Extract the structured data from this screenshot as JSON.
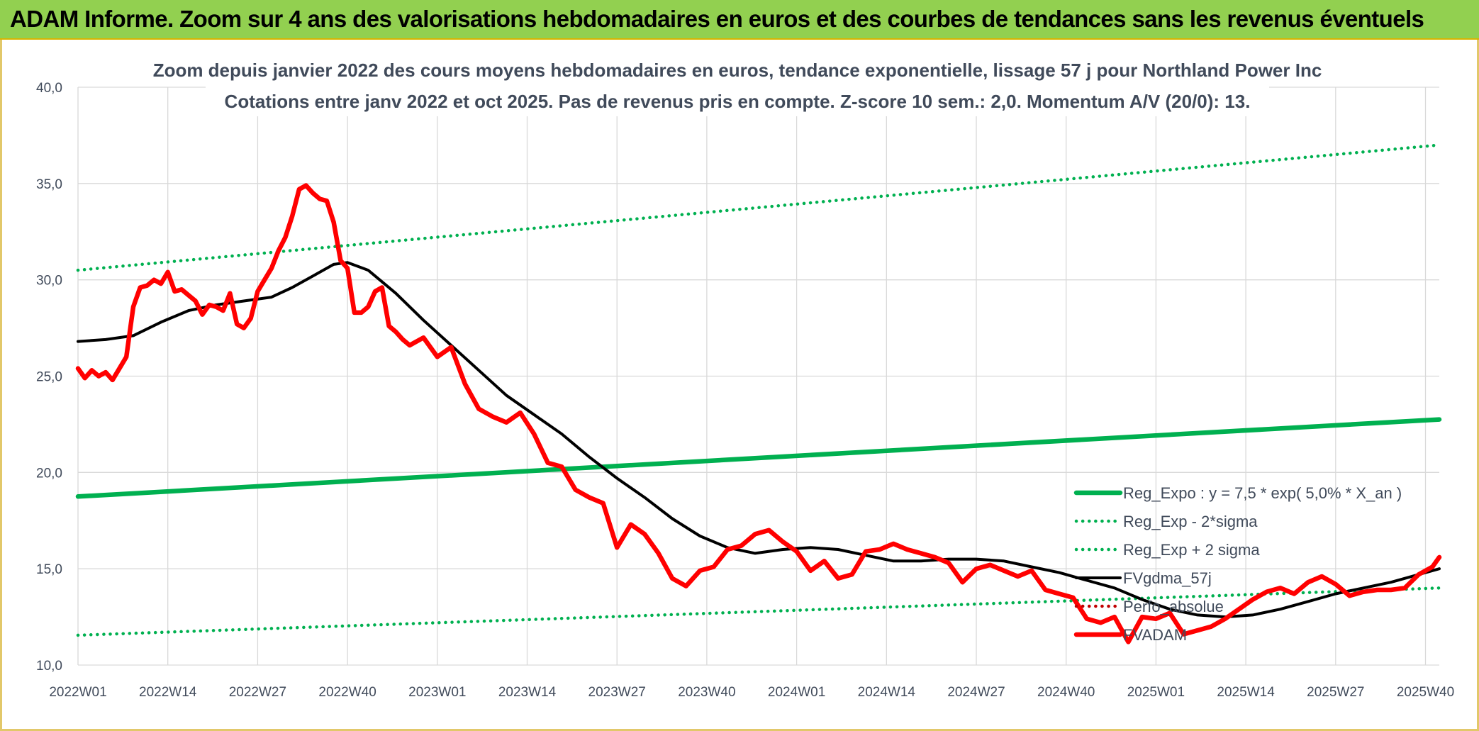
{
  "header": {
    "banner_title": "ADAM Informe. Zoom sur 4 ans des valorisations hebdomadaires en euros et des courbes de tendances sans les revenus éventuels"
  },
  "chart_data": {
    "type": "line",
    "title": "Zoom depuis janvier 2022 des cours moyens hebdomadaires en euros, tendance exponentielle, lissage 57 j pour Northland Power Inc",
    "subtitle": "Cotations entre janv 2022 et oct 2025. Pas de revenus pris en compte. Z-score 10 sem.: 2,0. Momentum A/V (20/0): 13.",
    "xlabel": "",
    "ylabel": "",
    "ylim": [
      10,
      40
    ],
    "y_ticks": [
      "10,0",
      "15,0",
      "20,0",
      "25,0",
      "30,0",
      "35,0",
      "40,0"
    ],
    "y_tick_values": [
      10,
      15,
      20,
      25,
      30,
      35,
      40
    ],
    "x_range": [
      0,
      197
    ],
    "x_ticks": [
      "2022W01",
      "2022W14",
      "2022W27",
      "2022W40",
      "2023W01",
      "2023W14",
      "2023W27",
      "2023W40",
      "2024W01",
      "2024W14",
      "2024W27",
      "2024W40",
      "2025W01",
      "2025W14",
      "2025W27",
      "2025W40"
    ],
    "x_tick_values": [
      0,
      13,
      26,
      39,
      52,
      65,
      78,
      91,
      104,
      117,
      130,
      143,
      156,
      169,
      182,
      195
    ],
    "grid": true,
    "legend_position": "bottom-right, inside plot",
    "colors": {
      "trend": "#00b050",
      "sigma": "#00b050",
      "smooth": "#000000",
      "perf": "#c00000",
      "price": "#ff0000",
      "grid": "#d9d9d9"
    },
    "series": [
      {
        "name": "Reg_Expo : y = 7,5 * exp( 5,0% *  X_an )",
        "style": "solid-thick",
        "color": "#00b050",
        "x": [
          0,
          197
        ],
        "values": [
          18.75,
          22.75
        ]
      },
      {
        "name": "Reg_Exp - 2*sigma",
        "style": "dotted",
        "color": "#00b050",
        "x": [
          0,
          197
        ],
        "values": [
          11.55,
          14.0
        ]
      },
      {
        "name": "Reg_Exp + 2 sigma",
        "style": "dotted",
        "color": "#00b050",
        "x": [
          0,
          197
        ],
        "values": [
          30.5,
          37.0
        ]
      },
      {
        "name": "FVgdma_57j",
        "style": "solid",
        "color": "#000000",
        "x": [
          0,
          4,
          8,
          12,
          16,
          20,
          24,
          28,
          31,
          34,
          37,
          39,
          42,
          46,
          50,
          54,
          58,
          62,
          66,
          70,
          74,
          78,
          82,
          86,
          90,
          94,
          98,
          102,
          106,
          110,
          114,
          118,
          122,
          126,
          130,
          134,
          138,
          142,
          146,
          150,
          154,
          158,
          162,
          166,
          170,
          174,
          178,
          182,
          186,
          190,
          194,
          197
        ],
        "values": [
          26.8,
          26.9,
          27.1,
          27.8,
          28.4,
          28.7,
          28.9,
          29.1,
          29.6,
          30.2,
          30.8,
          30.9,
          30.5,
          29.3,
          27.9,
          26.6,
          25.3,
          24.0,
          23.0,
          22.0,
          20.8,
          19.7,
          18.7,
          17.6,
          16.7,
          16.1,
          15.8,
          16.0,
          16.1,
          16.0,
          15.7,
          15.4,
          15.4,
          15.5,
          15.5,
          15.4,
          15.1,
          14.8,
          14.4,
          14.0,
          13.4,
          12.9,
          12.6,
          12.5,
          12.6,
          12.9,
          13.3,
          13.7,
          14.0,
          14.3,
          14.7,
          15.0
        ]
      },
      {
        "name": "Perfo_absolue",
        "style": "dotted",
        "color": "#c00000",
        "x": [],
        "values": []
      },
      {
        "name": "FVADAM",
        "style": "solid-thick",
        "color": "#ff0000",
        "x": [
          0,
          1,
          2,
          3,
          4,
          5,
          6,
          7,
          8,
          9,
          10,
          11,
          12,
          13,
          14,
          15,
          16,
          17,
          18,
          19,
          20,
          21,
          22,
          23,
          24,
          25,
          26,
          27,
          28,
          29,
          30,
          31,
          32,
          33,
          34,
          35,
          36,
          37,
          38,
          39,
          40,
          41,
          42,
          43,
          44,
          45,
          46,
          47,
          48,
          50,
          52,
          54,
          56,
          58,
          60,
          62,
          64,
          66,
          68,
          70,
          72,
          74,
          76,
          78,
          80,
          82,
          84,
          86,
          88,
          90,
          92,
          94,
          96,
          98,
          100,
          102,
          104,
          106,
          108,
          110,
          112,
          114,
          116,
          118,
          120,
          122,
          124,
          126,
          128,
          130,
          132,
          134,
          136,
          138,
          140,
          142,
          144,
          146,
          148,
          150,
          152,
          154,
          156,
          158,
          160,
          162,
          164,
          166,
          168,
          170,
          172,
          174,
          176,
          178,
          180,
          182,
          184,
          186,
          188,
          190,
          192,
          194,
          196,
          197
        ],
        "values": [
          25.4,
          24.9,
          25.3,
          25.0,
          25.2,
          24.8,
          25.4,
          26.0,
          28.6,
          29.6,
          29.7,
          30.0,
          29.8,
          30.4,
          29.4,
          29.5,
          29.2,
          28.9,
          28.2,
          28.7,
          28.6,
          28.4,
          29.3,
          27.7,
          27.5,
          28.0,
          29.4,
          30.0,
          30.6,
          31.5,
          32.2,
          33.3,
          34.7,
          34.9,
          34.5,
          34.2,
          34.1,
          33.0,
          31.0,
          30.6,
          28.3,
          28.3,
          28.6,
          29.4,
          29.6,
          27.6,
          27.3,
          26.9,
          26.6,
          27.0,
          26.0,
          26.5,
          24.6,
          23.3,
          22.9,
          22.6,
          23.1,
          22.0,
          20.5,
          20.3,
          19.1,
          18.7,
          18.4,
          16.1,
          17.3,
          16.8,
          15.8,
          14.5,
          14.1,
          14.9,
          15.1,
          16.0,
          16.2,
          16.8,
          17.0,
          16.4,
          15.9,
          14.9,
          15.4,
          14.5,
          14.7,
          15.9,
          16.0,
          16.3,
          16.0,
          15.8,
          15.6,
          15.3,
          14.3,
          15.0,
          15.2,
          14.9,
          14.6,
          14.9,
          13.9,
          13.7,
          13.5,
          12.4,
          12.2,
          12.5,
          11.2,
          12.5,
          12.4,
          12.7,
          11.6,
          11.8,
          12.0,
          12.4,
          12.9,
          13.4,
          13.8,
          14.0,
          13.7,
          14.3,
          14.6,
          14.2,
          13.6,
          13.8,
          13.9,
          13.9,
          14.0,
          14.7,
          15.1,
          15.6
        ]
      }
    ]
  }
}
